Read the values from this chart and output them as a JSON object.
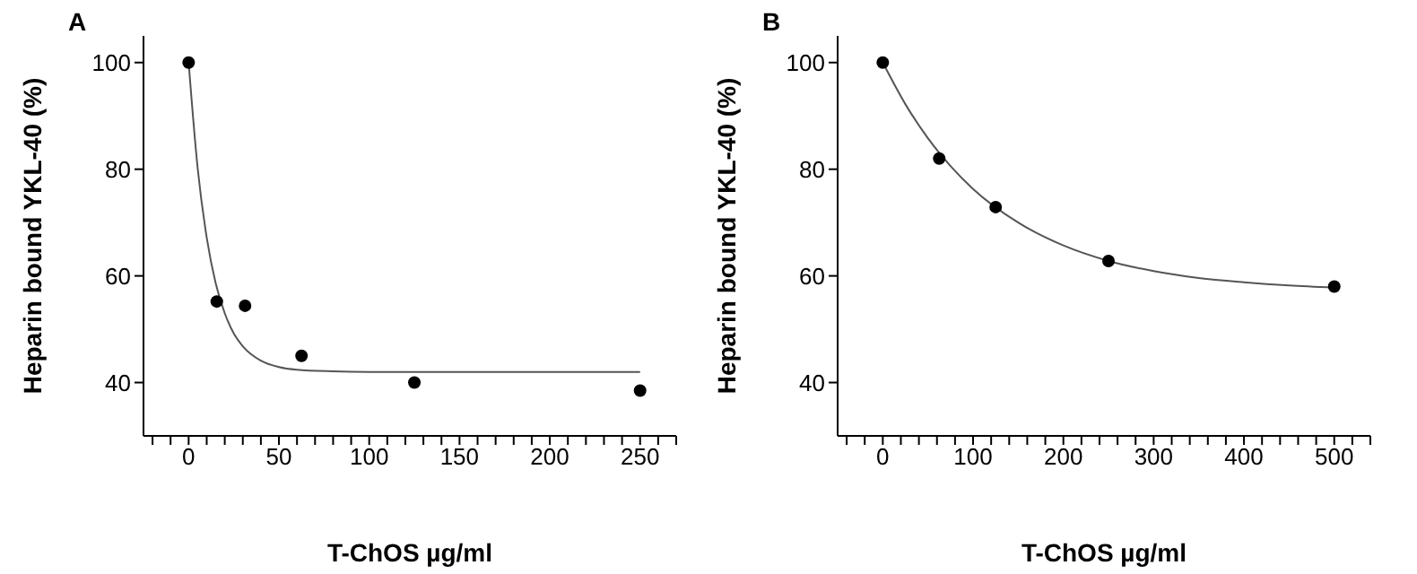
{
  "chart_data": [
    {
      "type": "scatter",
      "title": "A",
      "xlabel": "T-ChOS µg/ml",
      "ylabel": "Heparin bound YKL-40 (%)",
      "xlim": [
        -25,
        270
      ],
      "ylim": [
        30,
        105
      ],
      "xticks": [
        {
          "value": -20,
          "label": null
        },
        {
          "value": -10,
          "label": null
        },
        0,
        {
          "value": 10,
          "label": null
        },
        {
          "value": 20,
          "label": null
        },
        {
          "value": 30,
          "label": null
        },
        {
          "value": 40,
          "label": null
        },
        50,
        {
          "value": 60,
          "label": null
        },
        {
          "value": 70,
          "label": null
        },
        {
          "value": 80,
          "label": null
        },
        {
          "value": 90,
          "label": null
        },
        100,
        {
          "value": 110,
          "label": null
        },
        {
          "value": 120,
          "label": null
        },
        {
          "value": 130,
          "label": null
        },
        {
          "value": 140,
          "label": null
        },
        150,
        {
          "value": 160,
          "label": null
        },
        {
          "value": 170,
          "label": null
        },
        {
          "value": 180,
          "label": null
        },
        {
          "value": 190,
          "label": null
        },
        200,
        {
          "value": 210,
          "label": null
        },
        {
          "value": 220,
          "label": null
        },
        {
          "value": 230,
          "label": null
        },
        {
          "value": 240,
          "label": null
        },
        250,
        {
          "value": 260,
          "label": null
        },
        {
          "value": 270,
          "label": null
        }
      ],
      "yticks": [
        40,
        60,
        80,
        100
      ],
      "series": [
        {
          "marker": "circle",
          "color": "#000000",
          "x": [
            0,
            15.6,
            31.25,
            62.5,
            125,
            250
          ],
          "values": [
            100,
            55.2,
            54.4,
            45,
            40,
            38.5
          ]
        },
        {
          "type": "line",
          "color": "#555555",
          "x": [
            0,
            5,
            10,
            15,
            20,
            25,
            30,
            40,
            50,
            60,
            80,
            100,
            150,
            200,
            250
          ],
          "values": [
            100,
            80.2,
            67.2,
            58.6,
            53.0,
            49.2,
            46.8,
            44.1,
            42.9,
            42.4,
            42.1,
            42.0,
            42.0,
            42.0,
            42.0
          ]
        }
      ]
    },
    {
      "type": "scatter",
      "title": "B",
      "xlabel": "T-ChOS µg/ml",
      "ylabel": "Heparin bound YKL-40 (%)",
      "xlim": [
        -50,
        540
      ],
      "ylim": [
        30,
        105
      ],
      "xticks": [
        {
          "value": -40,
          "label": null
        },
        {
          "value": -20,
          "label": null
        },
        0,
        {
          "value": 20,
          "label": null
        },
        {
          "value": 40,
          "label": null
        },
        {
          "value": 60,
          "label": null
        },
        {
          "value": 80,
          "label": null
        },
        100,
        {
          "value": 120,
          "label": null
        },
        {
          "value": 140,
          "label": null
        },
        {
          "value": 160,
          "label": null
        },
        {
          "value": 180,
          "label": null
        },
        200,
        {
          "value": 220,
          "label": null
        },
        {
          "value": 240,
          "label": null
        },
        {
          "value": 260,
          "label": null
        },
        {
          "value": 280,
          "label": null
        },
        300,
        {
          "value": 320,
          "label": null
        },
        {
          "value": 340,
          "label": null
        },
        {
          "value": 360,
          "label": null
        },
        {
          "value": 380,
          "label": null
        },
        400,
        {
          "value": 420,
          "label": null
        },
        {
          "value": 440,
          "label": null
        },
        {
          "value": 460,
          "label": null
        },
        {
          "value": 480,
          "label": null
        },
        500,
        {
          "value": 520,
          "label": null
        },
        {
          "value": 540,
          "label": null
        }
      ],
      "yticks": [
        40,
        60,
        80,
        100
      ],
      "series": [
        {
          "marker": "circle",
          "color": "#000000",
          "x": [
            0,
            62.5,
            125,
            250,
            500
          ],
          "values": [
            100,
            82,
            72.9,
            62.8,
            58
          ]
        },
        {
          "type": "line",
          "color": "#555555",
          "x": [
            0,
            25,
            50,
            75,
            100,
            150,
            200,
            250,
            300,
            350,
            400,
            450,
            500
          ],
          "values": [
            100,
            92.2,
            85.8,
            80.6,
            76.3,
            70.0,
            65.7,
            62.8,
            60.9,
            59.6,
            58.8,
            58.2,
            57.8
          ]
        }
      ]
    }
  ]
}
